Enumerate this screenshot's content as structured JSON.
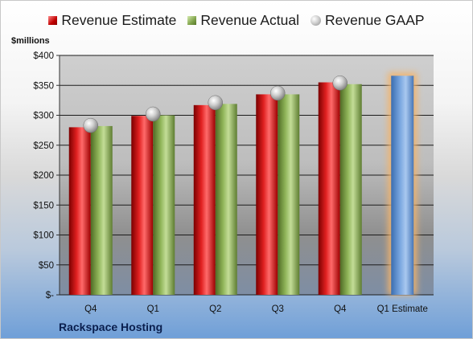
{
  "chart_data": {
    "type": "bar",
    "categories": [
      "Q4",
      "Q1",
      "Q2",
      "Q3",
      "Q4",
      "Q1 Estimate"
    ],
    "series": [
      {
        "name": "Revenue Estimate",
        "values": [
          280,
          299,
          317,
          335,
          355,
          null
        ],
        "color": "#c00000"
      },
      {
        "name": "Revenue Actual",
        "values": [
          282,
          300,
          319,
          335,
          352,
          null
        ],
        "color": "#7fa24a"
      },
      {
        "name": "Revenue GAAP",
        "values": [
          283,
          302,
          321,
          337,
          354,
          null
        ],
        "color": "#b0b0b0"
      }
    ],
    "projection": {
      "category": "Q1 Estimate",
      "value": 366,
      "color": "#6a9bd4",
      "glow": "#f4b46a"
    },
    "ylabel": "$millions",
    "ylim": [
      0,
      400
    ],
    "yticks": [
      0,
      50,
      100,
      150,
      200,
      250,
      300,
      350,
      400
    ],
    "ytick_labels": [
      "$-",
      "$50",
      "$100",
      "$150",
      "$200",
      "$250",
      "$300",
      "$350",
      "$400"
    ],
    "grid": true,
    "legend_position": "top"
  },
  "footer": {
    "company": "Rackspace Hosting"
  }
}
